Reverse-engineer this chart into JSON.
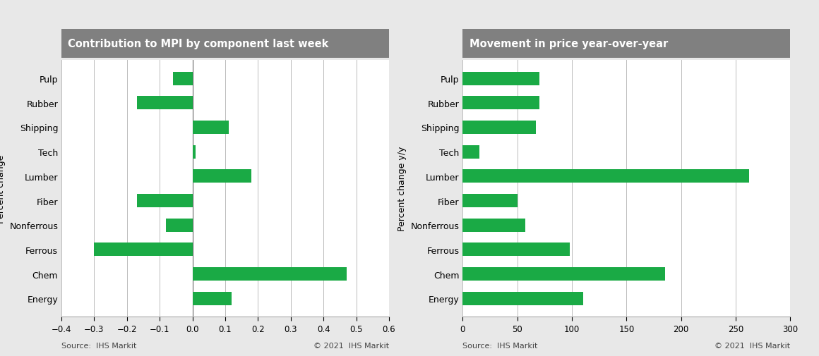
{
  "left_title": "Contribution to MPI by component last week",
  "right_title": "Movement in price year-over-year",
  "categories": [
    "Energy",
    "Chem",
    "Ferrous",
    "Nonferrous",
    "Fiber",
    "Lumber",
    "Tech",
    "Shipping",
    "Rubber",
    "Pulp"
  ],
  "left_values": [
    0.12,
    0.47,
    -0.3,
    -0.08,
    -0.17,
    0.18,
    0.01,
    0.11,
    -0.17,
    -0.06
  ],
  "right_values": [
    110,
    185,
    98,
    57,
    50,
    262,
    15,
    67,
    70,
    70
  ],
  "left_xlim": [
    -0.4,
    0.6
  ],
  "right_xlim": [
    0,
    300
  ],
  "left_xticks": [
    -0.4,
    -0.3,
    -0.2,
    -0.1,
    0.0,
    0.1,
    0.2,
    0.3,
    0.4,
    0.5,
    0.6
  ],
  "right_xticks": [
    0,
    50,
    100,
    150,
    200,
    250,
    300
  ],
  "left_ylabel": "Percent change",
  "right_ylabel": "Percent change y/y",
  "bar_color": "#1aaa45",
  "bg_color": "#e8e8e8",
  "title_bg_color": "#808080",
  "title_text_color": "#ffffff",
  "plot_bg_color": "#ffffff",
  "source_text": "Source:  IHS Markit",
  "copyright_text": "© 2021  IHS Markit",
  "title_fontsize": 10.5,
  "label_fontsize": 9,
  "tick_fontsize": 8.5,
  "source_fontsize": 8,
  "bar_height": 0.55
}
